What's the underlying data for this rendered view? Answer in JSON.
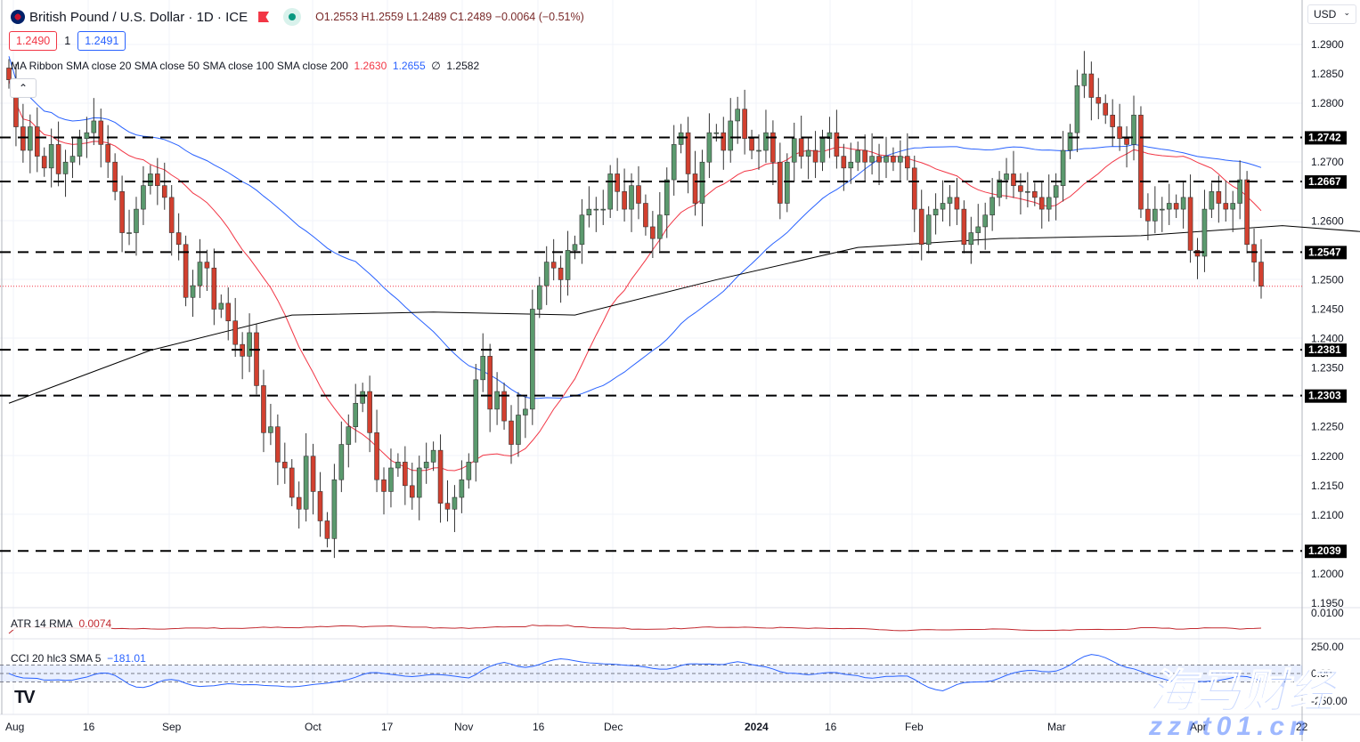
{
  "header": {
    "title": "British Pound / U.S. Dollar · 1D · ICE",
    "open": "O1.2553",
    "high": "H1.2559",
    "low": "L1.2489",
    "close": "C1.2489",
    "change": "−0.0064 (−0.51%)"
  },
  "trade": {
    "sell": "1.2490",
    "qty": "1",
    "buy": "1.2491"
  },
  "ma_legend": {
    "label": "MA Ribbon SMA close 20 SMA close 50 SMA close 100 SMA close 200",
    "v20": "1.2630",
    "v50": "1.2655",
    "v100": "∅",
    "v200": "1.2582"
  },
  "atr_legend": {
    "label": "ATR 14 RMA",
    "value": "0.0074"
  },
  "cci_legend": {
    "label": "CCI 20 hlc3 SMA 5",
    "value": "−181.01"
  },
  "currency": "USD",
  "collapse_icon": "chevron-up-icon",
  "watermark": {
    "cn": "海马财经",
    "url": "zzrt01.cn"
  },
  "colors": {
    "up": "#5b9a6e",
    "down": "#d2402f",
    "sma20": "#f23645",
    "sma50": "#2962ff",
    "sma200": "#000000",
    "atr": "#c2282e",
    "cci": "#2962ff"
  },
  "chart_data": {
    "type": "candlestick",
    "yaxis": {
      "range": [
        1.192,
        1.2935
      ],
      "ticks": [
        "1.2900",
        "1.2850",
        "1.2800",
        "1.2700",
        "1.2600",
        "1.2500",
        "1.2450",
        "1.2400",
        "1.2350",
        "1.2250",
        "1.2200",
        "1.2150",
        "1.2100",
        "1.2000",
        "1.1950"
      ]
    },
    "atr_axis": [
      "0.0100"
    ],
    "cci_axis": [
      "250.00",
      "0.00",
      "-250.00"
    ],
    "xaxis": [
      "Aug",
      "16",
      "Sep",
      "Oct",
      "17",
      "Nov",
      "16",
      "Dec",
      "2024",
      "16",
      "Feb",
      "Mar",
      "Apr",
      "22"
    ],
    "levels": [
      "1.2742",
      "1.2667",
      "1.2547",
      "1.2381",
      "1.2303",
      "1.2039"
    ],
    "last_price_dotted": 1.2489,
    "closes": [
      1.284,
      1.276,
      1.272,
      1.276,
      1.271,
      1.269,
      1.273,
      1.268,
      1.27,
      1.271,
      1.274,
      1.275,
      1.277,
      1.273,
      1.27,
      1.265,
      1.258,
      1.258,
      1.262,
      1.266,
      1.268,
      1.266,
      1.264,
      1.258,
      1.256,
      1.247,
      1.249,
      1.253,
      1.252,
      1.245,
      1.246,
      1.243,
      1.239,
      1.237,
      1.241,
      1.232,
      1.224,
      1.225,
      1.219,
      1.218,
      1.213,
      1.211,
      1.22,
      1.214,
      1.209,
      1.206,
      1.216,
      1.222,
      1.225,
      1.229,
      1.231,
      1.224,
      1.216,
      1.214,
      1.218,
      1.219,
      1.215,
      1.213,
      1.218,
      1.219,
      1.221,
      1.212,
      1.211,
      1.213,
      1.216,
      1.219,
      1.233,
      1.237,
      1.228,
      1.231,
      1.226,
      1.222,
      1.227,
      1.228,
      1.245,
      1.249,
      1.253,
      1.252,
      1.25,
      1.255,
      1.256,
      1.261,
      1.262,
      1.262,
      1.262,
      1.268,
      1.265,
      1.262,
      1.266,
      1.263,
      1.259,
      1.257,
      1.261,
      1.267,
      1.273,
      1.275,
      1.268,
      1.263,
      1.27,
      1.275,
      1.275,
      1.272,
      1.277,
      1.279,
      1.274,
      1.272,
      1.272,
      1.275,
      1.27,
      1.263,
      1.27,
      1.274,
      1.271,
      1.272,
      1.27,
      1.274,
      1.275,
      1.271,
      1.269,
      1.27,
      1.272,
      1.27,
      1.271,
      1.27,
      1.271,
      1.27,
      1.271,
      1.269,
      1.262,
      1.256,
      1.261,
      1.262,
      1.263,
      1.264,
      1.262,
      1.256,
      1.258,
      1.259,
      1.261,
      1.264,
      1.267,
      1.268,
      1.266,
      1.265,
      1.265,
      1.264,
      1.262,
      1.264,
      1.266,
      1.272,
      1.275,
      1.283,
      1.285,
      1.281,
      1.28,
      1.278,
      1.276,
      1.274,
      1.273,
      1.278,
      1.262,
      1.26,
      1.262,
      1.262,
      1.263,
      1.262,
      1.264,
      1.255,
      1.254,
      1.262,
      1.265,
      1.263,
      1.262,
      1.263,
      1.267,
      1.256,
      1.253,
      1.2489
    ],
    "sma200": [
      [
        0,
        1.229
      ],
      [
        20,
        1.238
      ],
      [
        40,
        1.244
      ],
      [
        60,
        1.2445
      ],
      [
        80,
        1.244
      ],
      [
        100,
        1.25
      ],
      [
        120,
        1.2555
      ],
      [
        140,
        1.257
      ],
      [
        160,
        1.2575
      ],
      [
        180,
        1.2592
      ],
      [
        191,
        1.2582
      ]
    ]
  }
}
